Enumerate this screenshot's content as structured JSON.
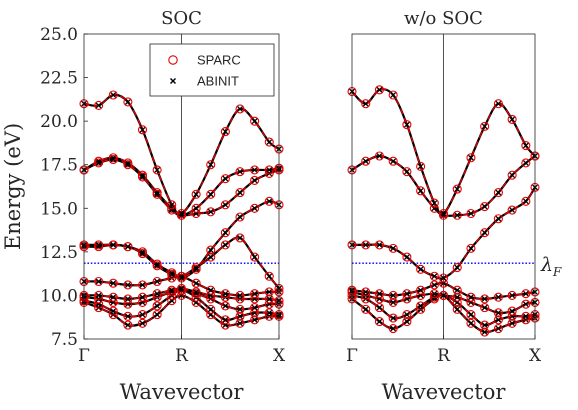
{
  "chart_data": [
    {
      "type": "line",
      "title": "SOC",
      "xlabel": "Wavevector",
      "ylabel": "Energy (eV)",
      "ylim": [
        7.5,
        25.0
      ],
      "yticks": [
        "7.5",
        "10.0",
        "12.5",
        "15.0",
        "17.5",
        "20.0",
        "22.5",
        "25.0"
      ],
      "xticks": [
        "Γ",
        "R",
        "X"
      ],
      "xlim": [
        0,
        2
      ],
      "grid": false,
      "legend": {
        "placement": "top-right",
        "entries": [
          "SPARC",
          "ABINIT"
        ]
      },
      "fermi_level": 11.85,
      "fermi_label": "λF",
      "marker_x": [
        0,
        0.15,
        0.3,
        0.45,
        0.6,
        0.75,
        0.9,
        1.0,
        1.15,
        1.3,
        1.45,
        1.6,
        1.75,
        1.9,
        2.0
      ],
      "series": [
        {
          "name": "SPARC",
          "color": "#e60000",
          "style": "dashed line + open circles",
          "bands": [
            [
              9.6,
              9.3,
              8.9,
              8.3,
              8.4,
              8.9,
              9.7,
              10.0,
              9.6,
              8.9,
              8.3,
              8.4,
              8.6,
              8.8,
              8.8
            ],
            [
              9.7,
              9.5,
              9.1,
              8.8,
              8.9,
              9.4,
              10.0,
              10.3,
              9.9,
              9.2,
              8.6,
              8.8,
              9.0,
              9.0,
              8.9
            ],
            [
              9.9,
              9.8,
              9.6,
              9.5,
              9.6,
              9.9,
              10.2,
              10.3,
              10.1,
              9.8,
              9.4,
              9.2,
              9.3,
              9.5,
              9.5
            ],
            [
              10.0,
              10.0,
              9.9,
              9.8,
              9.9,
              10.1,
              10.3,
              10.4,
              10.2,
              10.0,
              9.9,
              9.8,
              9.8,
              9.8,
              9.7
            ],
            [
              10.8,
              10.8,
              10.7,
              10.6,
              10.6,
              10.8,
              11.0,
              11.1,
              10.7,
              10.3,
              10.1,
              10.0,
              10.1,
              10.2,
              10.2
            ],
            [
              12.8,
              12.8,
              12.9,
              12.8,
              12.5,
              11.8,
              11.3,
              11.1,
              11.6,
              12.2,
              12.9,
              13.3,
              12.2,
              11.1,
              10.4
            ],
            [
              12.9,
              12.9,
              12.9,
              12.8,
              12.4,
              11.7,
              11.2,
              11.0,
              11.5,
              12.6,
              13.6,
              14.5,
              15.0,
              15.4,
              15.2
            ],
            [
              17.2,
              17.7,
              17.9,
              17.6,
              16.9,
              15.9,
              15.0,
              14.6,
              14.7,
              14.8,
              15.2,
              15.9,
              16.6,
              17.0,
              17.2
            ],
            [
              17.2,
              17.6,
              17.8,
              17.5,
              16.8,
              15.8,
              14.9,
              14.6,
              15.0,
              15.8,
              16.7,
              17.1,
              17.2,
              17.2,
              17.3
            ],
            [
              21.0,
              20.9,
              21.5,
              21.1,
              19.5,
              17.2,
              15.2,
              14.7,
              15.8,
              17.5,
              19.4,
              20.7,
              20.0,
              18.8,
              18.4
            ]
          ]
        },
        {
          "name": "ABINIT",
          "color": "#000000",
          "style": "solid line + x markers"
        }
      ]
    },
    {
      "type": "line",
      "title": "w/o SOC",
      "xlabel": "Wavevector",
      "ylabel": "",
      "ylim": [
        7.5,
        25.0
      ],
      "xticks": [
        "Γ",
        "R",
        "X"
      ],
      "xlim": [
        0,
        2
      ],
      "grid": false,
      "fermi_level": 11.85,
      "marker_x": [
        0,
        0.15,
        0.3,
        0.45,
        0.6,
        0.75,
        0.9,
        1.0,
        1.15,
        1.3,
        1.45,
        1.6,
        1.75,
        1.9,
        2.0
      ],
      "series": [
        {
          "name": "SPARC",
          "color": "#e60000",
          "style": "dashed line + open circles",
          "bands": [
            [
              9.8,
              9.2,
              8.5,
              8.1,
              8.5,
              9.2,
              9.8,
              10.0,
              9.2,
              8.4,
              7.9,
              8.1,
              8.4,
              8.6,
              8.7
            ],
            [
              10.0,
              9.8,
              9.3,
              8.7,
              8.9,
              9.4,
              9.9,
              10.0,
              9.6,
              8.9,
              8.3,
              8.6,
              8.8,
              8.8,
              8.9
            ],
            [
              10.2,
              10.0,
              9.8,
              9.6,
              9.8,
              10.0,
              10.1,
              10.0,
              9.9,
              9.6,
              9.3,
              9.0,
              9.1,
              9.5,
              9.6
            ],
            [
              10.3,
              10.2,
              10.1,
              10.0,
              10.1,
              10.3,
              10.6,
              10.7,
              10.3,
              9.9,
              9.8,
              9.9,
              10.0,
              10.1,
              10.2
            ],
            [
              12.9,
              12.9,
              12.9,
              12.7,
              12.2,
              11.5,
              11.1,
              11.0,
              11.6,
              12.7,
              13.6,
              14.4,
              14.9,
              15.4,
              16.2
            ],
            [
              17.2,
              17.7,
              18.0,
              17.7,
              17.1,
              16.0,
              15.0,
              14.6,
              14.6,
              14.7,
              15.1,
              15.9,
              16.9,
              17.6,
              18.0
            ],
            [
              21.7,
              21.0,
              21.8,
              21.5,
              19.8,
              17.4,
              15.3,
              14.7,
              16.1,
              17.9,
              19.7,
              21.0,
              20.1,
              18.6,
              18.0
            ]
          ]
        },
        {
          "name": "ABINIT",
          "color": "#000000",
          "style": "solid line + x markers"
        }
      ]
    }
  ]
}
